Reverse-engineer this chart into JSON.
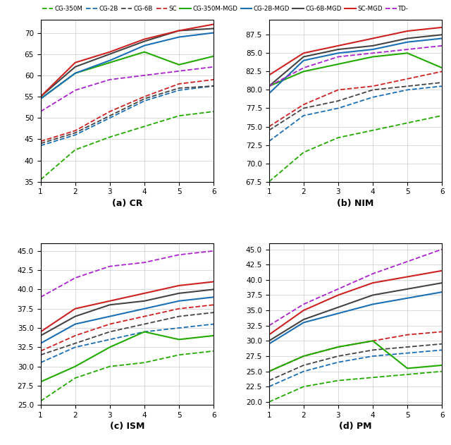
{
  "x": [
    1,
    2,
    3,
    4,
    5,
    6
  ],
  "series_keys": [
    "CG-350M",
    "CG-2B",
    "CG-6B",
    "SC",
    "CG-350M-MGD",
    "CG-2B-MGD",
    "CG-6B-MGD",
    "SC-MGD",
    "TD-"
  ],
  "color_map": {
    "CG-350M": "#22aa00",
    "CG-2B": "#1a6fb5",
    "CG-6B": "#444444",
    "SC": "#cc2222",
    "CG-350M-MGD": "#22aa00",
    "CG-2B-MGD": "#1a6fb5",
    "CG-6B-MGD": "#444444",
    "SC-MGD": "#cc2222",
    "TD-": "#aa22cc"
  },
  "linestyle_map": {
    "CG-350M": "--",
    "CG-2B": "--",
    "CG-6B": "--",
    "SC": "--",
    "CG-350M-MGD": "-",
    "CG-2B-MGD": "-",
    "CG-6B-MGD": "-",
    "SC-MGD": "-",
    "TD-": "--"
  },
  "CR": {
    "CG-350M": [
      35.5,
      42.5,
      45.5,
      48.0,
      50.5,
      51.5
    ],
    "CG-2B": [
      43.5,
      46.0,
      50.0,
      54.0,
      56.5,
      57.5
    ],
    "CG-6B": [
      44.0,
      46.5,
      50.5,
      54.5,
      57.0,
      57.5
    ],
    "SC": [
      44.5,
      47.0,
      51.5,
      55.0,
      58.0,
      59.0
    ],
    "CG-350M-MGD": [
      54.5,
      60.5,
      63.0,
      65.5,
      62.5,
      64.5
    ],
    "CG-2B-MGD": [
      54.5,
      60.5,
      63.5,
      67.0,
      69.0,
      70.0
    ],
    "CG-6B-MGD": [
      55.0,
      62.0,
      65.0,
      68.0,
      70.5,
      71.0
    ],
    "SC-MGD": [
      55.0,
      63.0,
      65.5,
      68.5,
      70.5,
      72.0
    ],
    "TD-": [
      51.5,
      56.5,
      59.0,
      60.0,
      61.0,
      62.0
    ]
  },
  "NIM": {
    "CG-350M": [
      67.5,
      71.5,
      73.5,
      74.5,
      75.5,
      76.5
    ],
    "CG-2B": [
      73.0,
      76.5,
      77.5,
      79.0,
      80.0,
      80.5
    ],
    "CG-6B": [
      74.5,
      77.5,
      78.5,
      80.0,
      80.5,
      81.0
    ],
    "SC": [
      75.0,
      78.0,
      80.0,
      80.5,
      81.5,
      82.5
    ],
    "CG-350M-MGD": [
      80.5,
      82.5,
      83.5,
      84.5,
      85.0,
      83.0
    ],
    "CG-2B-MGD": [
      79.5,
      84.0,
      85.0,
      85.5,
      86.5,
      87.0
    ],
    "CG-6B-MGD": [
      80.5,
      84.5,
      85.5,
      86.0,
      87.0,
      87.5
    ],
    "SC-MGD": [
      82.0,
      85.0,
      86.0,
      87.0,
      88.0,
      88.5
    ],
    "TD-": [
      80.5,
      83.0,
      84.5,
      85.0,
      85.5,
      86.0
    ]
  },
  "ISM": {
    "CG-350M": [
      25.5,
      28.5,
      30.0,
      30.5,
      31.5,
      32.0
    ],
    "CG-2B": [
      30.5,
      32.5,
      33.5,
      34.5,
      35.0,
      35.5
    ],
    "CG-6B": [
      31.5,
      33.0,
      34.5,
      35.5,
      36.5,
      37.0
    ],
    "SC": [
      32.0,
      34.0,
      35.5,
      36.5,
      37.5,
      38.0
    ],
    "CG-350M-MGD": [
      28.0,
      30.0,
      32.5,
      34.5,
      33.5,
      34.0
    ],
    "CG-2B-MGD": [
      33.0,
      35.5,
      36.5,
      37.5,
      38.5,
      39.0
    ],
    "CG-6B-MGD": [
      34.0,
      36.5,
      38.0,
      38.5,
      39.5,
      40.0
    ],
    "SC-MGD": [
      34.5,
      37.5,
      38.5,
      39.5,
      40.5,
      41.0
    ],
    "TD-": [
      39.0,
      41.5,
      43.0,
      43.5,
      44.5,
      45.0
    ]
  },
  "PM": {
    "CG-350M": [
      20.0,
      22.5,
      23.5,
      24.0,
      24.5,
      25.0
    ],
    "CG-2B": [
      22.5,
      25.0,
      26.5,
      27.5,
      28.0,
      28.5
    ],
    "CG-6B": [
      23.5,
      26.0,
      27.5,
      28.5,
      29.0,
      29.5
    ],
    "SC": [
      25.0,
      27.5,
      29.0,
      30.0,
      31.0,
      31.5
    ],
    "CG-350M-MGD": [
      25.0,
      27.5,
      29.0,
      30.0,
      25.5,
      26.0
    ],
    "CG-2B-MGD": [
      29.5,
      33.0,
      34.5,
      36.0,
      37.0,
      38.0
    ],
    "CG-6B-MGD": [
      30.0,
      33.5,
      35.5,
      37.5,
      38.5,
      39.5
    ],
    "SC-MGD": [
      31.0,
      35.0,
      37.5,
      39.5,
      40.5,
      41.5
    ],
    "TD-": [
      32.5,
      36.0,
      38.5,
      41.0,
      43.0,
      45.0
    ]
  },
  "ylims": {
    "CR": [
      35,
      73
    ],
    "NIM": [
      67.5,
      89.5
    ],
    "ISM": [
      25.0,
      46.0
    ],
    "PM": [
      19.5,
      46.0
    ]
  },
  "yticks": {
    "CR": [
      35,
      40,
      45,
      50,
      55,
      60,
      65,
      70
    ],
    "NIM": [
      67.5,
      70.0,
      72.5,
      75.0,
      77.5,
      80.0,
      82.5,
      85.0,
      87.5
    ],
    "ISM": [
      25.0,
      27.5,
      30.0,
      32.5,
      35.0,
      37.5,
      40.0,
      42.5,
      45.0
    ],
    "PM": [
      20.0,
      22.5,
      25.0,
      27.5,
      30.0,
      32.5,
      35.0,
      37.5,
      40.0,
      42.5,
      45.0
    ]
  },
  "subtitles": [
    "(a) CR",
    "(b) NIM",
    "(c) ISM",
    "(d) PM"
  ],
  "background_color": "#ffffff"
}
